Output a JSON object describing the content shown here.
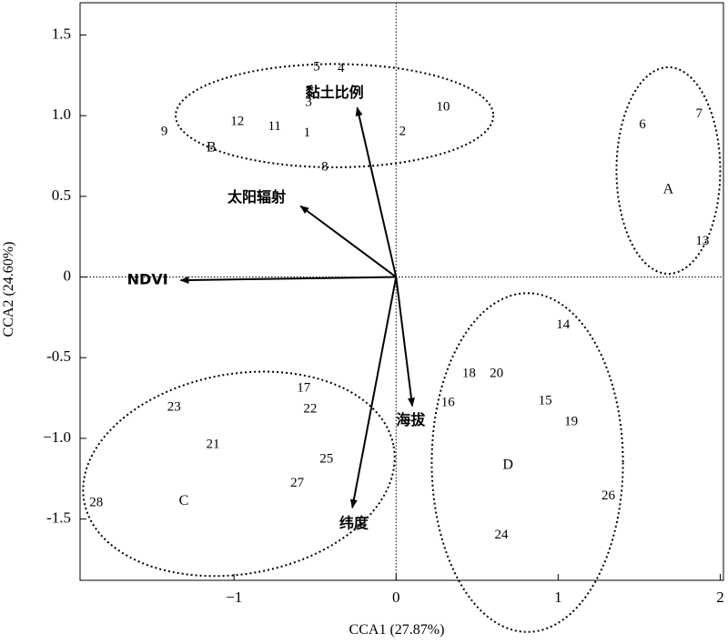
{
  "chart_data": {
    "type": "scatter",
    "xlabel": "CCA1 (27.87%)",
    "ylabel": "CCA2 (24.60%)",
    "xlim": [
      -1.95,
      2.02
    ],
    "ylim": [
      -1.88,
      1.7
    ],
    "xticks": [
      {
        "value": -1,
        "label": "−1"
      },
      {
        "value": 0,
        "label": "0"
      },
      {
        "value": 1,
        "label": "1"
      },
      {
        "value": 2,
        "label": "2"
      }
    ],
    "yticks": [
      {
        "value": 1.5,
        "label": "1.5"
      },
      {
        "value": 1.0,
        "label": "1.0"
      },
      {
        "value": 0.5,
        "label": "0.5"
      },
      {
        "value": 0,
        "label": "0"
      },
      {
        "value": -0.5,
        "label": "-0.5"
      },
      {
        "value": -1.0,
        "label": "−1.0"
      },
      {
        "value": -1.5,
        "label": "-1.5"
      }
    ],
    "reference_lines": {
      "x": 0,
      "y": 0,
      "style": "dotted"
    },
    "sites": [
      {
        "label": "1",
        "x": -0.55,
        "y": 0.89
      },
      {
        "label": "2",
        "x": 0.04,
        "y": 0.9
      },
      {
        "label": "3",
        "x": -0.54,
        "y": 1.08
      },
      {
        "label": "4",
        "x": -0.34,
        "y": 1.29
      },
      {
        "label": "5",
        "x": -0.49,
        "y": 1.3
      },
      {
        "label": "6",
        "x": 1.52,
        "y": 0.94
      },
      {
        "label": "7",
        "x": 1.87,
        "y": 1.01
      },
      {
        "label": "8",
        "x": -0.44,
        "y": 0.68
      },
      {
        "label": "9",
        "x": -1.43,
        "y": 0.9
      },
      {
        "label": "10",
        "x": 0.29,
        "y": 1.05
      },
      {
        "label": "11",
        "x": -0.75,
        "y": 0.93
      },
      {
        "label": "12",
        "x": -0.98,
        "y": 0.96
      },
      {
        "label": "13",
        "x": 1.89,
        "y": 0.22
      },
      {
        "label": "14",
        "x": 1.03,
        "y": -0.3
      },
      {
        "label": "15",
        "x": 0.92,
        "y": -0.77
      },
      {
        "label": "16",
        "x": 0.32,
        "y": -0.78
      },
      {
        "label": "17",
        "x": -0.57,
        "y": -0.69
      },
      {
        "label": "18",
        "x": 0.45,
        "y": -0.6
      },
      {
        "label": "19",
        "x": 1.08,
        "y": -0.9
      },
      {
        "label": "20",
        "x": 0.62,
        "y": -0.6
      },
      {
        "label": "21",
        "x": -1.13,
        "y": -1.04
      },
      {
        "label": "22",
        "x": -0.53,
        "y": -0.82
      },
      {
        "label": "23",
        "x": -1.37,
        "y": -0.81
      },
      {
        "label": "24",
        "x": 0.65,
        "y": -1.6
      },
      {
        "label": "25",
        "x": -0.43,
        "y": -1.13
      },
      {
        "label": "26",
        "x": 1.31,
        "y": -1.36
      },
      {
        "label": "27",
        "x": -0.61,
        "y": -1.28
      },
      {
        "label": "28",
        "x": -1.85,
        "y": -1.4
      }
    ],
    "vectors": [
      {
        "name": "黏土比例",
        "x": -0.24,
        "y": 1.05,
        "label_x": -0.38,
        "label_y": 1.14,
        "anchor": "middle"
      },
      {
        "name": "太阳辐射",
        "x": -0.59,
        "y": 0.44,
        "label_x": -1.04,
        "label_y": 0.49,
        "anchor": "start"
      },
      {
        "name": "NDVI",
        "x": -1.33,
        "y": -0.02,
        "label_x": -1.66,
        "label_y": -0.02,
        "anchor": "start"
      },
      {
        "name": "海拔",
        "x": 0.1,
        "y": -0.8,
        "label_x": 0.0,
        "label_y": -0.89,
        "anchor": "start"
      },
      {
        "name": "纬度",
        "x": -0.27,
        "y": -1.43,
        "label_x": -0.35,
        "label_y": -1.53,
        "anchor": "start"
      }
    ],
    "groups": [
      {
        "name": "A",
        "cx": 1.68,
        "cy": 0.66,
        "rx": 0.32,
        "ry": 0.64,
        "angle": 0,
        "label_x": 1.68,
        "label_y": 0.54
      },
      {
        "name": "B",
        "cx": -0.38,
        "cy": 1.0,
        "rx": 0.98,
        "ry": 0.32,
        "angle": 0,
        "label_x": -1.14,
        "label_y": 0.8
      },
      {
        "name": "C",
        "cx": -0.97,
        "cy": -1.22,
        "rx": 0.97,
        "ry": 0.62,
        "angle": -10,
        "label_x": -1.31,
        "label_y": -1.39
      },
      {
        "name": "D",
        "cx": 0.81,
        "cy": -1.15,
        "rx": 0.59,
        "ry": 1.05,
        "angle": 0,
        "label_x": 0.69,
        "label_y": -1.17
      }
    ]
  }
}
